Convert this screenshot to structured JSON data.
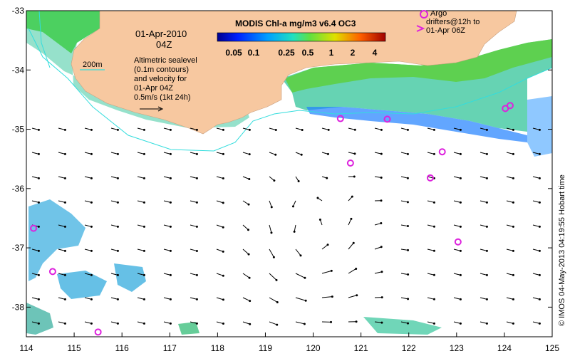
{
  "title": "MODIS Chl-a mg/m3 v6.4 OC3",
  "date": "01-Apr-2010",
  "time": "04Z",
  "depth_label": "200m",
  "notes": [
    "Altimetric sealevel",
    "(0.1m contours)",
    "and velocity for",
    "01-Apr 04Z",
    "0.5m/s (1kt 24h)"
  ],
  "argo_legend": [
    "Argo",
    "drifters@12h to",
    "01-Apr 06Z"
  ],
  "colorbar_ticks": [
    "0.05",
    "0.1",
    "0.25",
    "0.5",
    "1",
    "2",
    "4"
  ],
  "credit": "© IMOS 04-May-2013 04:19:55 Hobart time",
  "x_ticks": [
    "114",
    "115",
    "116",
    "117",
    "118",
    "119",
    "120",
    "121",
    "122",
    "123",
    "124",
    "125"
  ],
  "y_ticks": [
    "-33",
    "-34",
    "-35",
    "-36",
    "-37",
    "-38"
  ],
  "colors": {
    "land": "#f7c8a0",
    "contour": "#33dddd",
    "argo": "#dd22dd",
    "arrow": "#000000"
  },
  "argo_floats": [
    {
      "lon": 114.15,
      "lat": -36.67
    },
    {
      "lon": 114.55,
      "lat": -37.4
    },
    {
      "lon": 115.5,
      "lat": -38.42
    },
    {
      "lon": 120.57,
      "lat": -34.82
    },
    {
      "lon": 120.78,
      "lat": -35.57
    },
    {
      "lon": 121.55,
      "lat": -34.83
    },
    {
      "lon": 122.45,
      "lat": -35.82
    },
    {
      "lon": 122.7,
      "lat": -35.38
    },
    {
      "lon": 123.03,
      "lat": -36.9
    },
    {
      "lon": 124.02,
      "lat": -34.65
    },
    {
      "lon": 124.12,
      "lat": -34.6
    }
  ]
}
